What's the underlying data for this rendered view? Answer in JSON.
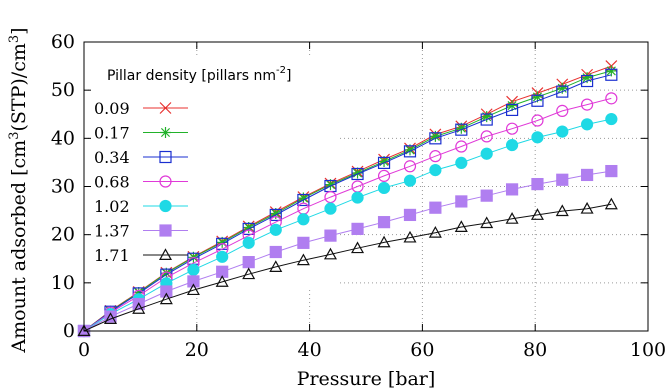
{
  "chart_data": {
    "type": "line",
    "title": "",
    "xlabel": "Pressure [bar]",
    "ylabel_prefix": "Amount adsorbed [cm",
    "ylabel_sup1": "3",
    "ylabel_mid": "(STP)/cm",
    "ylabel_sup2": "3",
    "ylabel_suffix": "]",
    "xlim": [
      0,
      100
    ],
    "ylim": [
      0,
      60
    ],
    "xticks": [
      0,
      20,
      40,
      60,
      80,
      100
    ],
    "yticks": [
      0,
      10,
      20,
      30,
      40,
      50,
      60
    ],
    "grid": true,
    "legend_position": "top-left",
    "legend_title_main": "Pillar density [pillars nm",
    "legend_title_sup": "-2",
    "legend_title_end": "]",
    "x": [
      0,
      4.7,
      9.7,
      14.6,
      19.4,
      24.5,
      29.2,
      34.0,
      38.9,
      43.7,
      48.5,
      53.2,
      57.8,
      62.3,
      66.9,
      71.4,
      75.9,
      80.4,
      84.8,
      89.2,
      93.5
    ],
    "series": [
      {
        "name": "0.09",
        "marker": "x",
        "color": "#e8312f",
        "values": [
          0,
          4.2,
          8.1,
          12.1,
          15.4,
          18.6,
          21.7,
          24.7,
          27.8,
          30.6,
          33.1,
          35.6,
          37.9,
          40.8,
          42.5,
          45.0,
          47.6,
          49.4,
          51.2,
          53.2,
          55.0
        ]
      },
      {
        "name": "0.17",
        "marker": "star",
        "color": "#22b22a",
        "values": [
          0,
          4.1,
          8.0,
          12.0,
          15.3,
          18.4,
          21.5,
          24.4,
          27.6,
          30.4,
          32.8,
          35.2,
          37.6,
          40.4,
          42.1,
          44.5,
          46.8,
          48.6,
          50.4,
          52.6,
          54.0
        ]
      },
      {
        "name": "0.34",
        "marker": "square",
        "color": "#1a2fd0",
        "values": [
          0,
          4.0,
          7.8,
          11.7,
          15.0,
          18.1,
          21.2,
          24.1,
          27.2,
          30.1,
          32.6,
          34.9,
          37.3,
          40.0,
          41.8,
          43.9,
          45.9,
          47.8,
          49.7,
          51.9,
          53.2
        ]
      },
      {
        "name": "0.68",
        "marker": "circle",
        "color": "#e03ad8",
        "values": [
          0,
          3.8,
          7.3,
          11.1,
          14.1,
          17.0,
          19.8,
          22.6,
          25.4,
          27.8,
          30.0,
          32.2,
          34.2,
          36.3,
          38.3,
          40.4,
          42.0,
          43.7,
          45.7,
          47.0,
          48.3
        ]
      },
      {
        "name": "1.02",
        "marker": "circle-filled",
        "color": "#1fd9e5",
        "values": [
          0,
          3.5,
          6.6,
          9.9,
          12.7,
          15.4,
          18.3,
          21.0,
          23.2,
          25.4,
          27.7,
          29.7,
          31.2,
          33.4,
          34.9,
          36.8,
          38.6,
          40.2,
          41.4,
          42.9,
          44.0
        ]
      },
      {
        "name": "1.37",
        "marker": "square-filled",
        "color": "#b07ef0",
        "values": [
          0,
          3.0,
          5.6,
          8.2,
          10.3,
          12.3,
          14.3,
          16.4,
          18.3,
          19.8,
          21.2,
          22.6,
          24.1,
          25.6,
          26.9,
          28.1,
          29.4,
          30.5,
          31.4,
          32.4,
          33.2
        ]
      },
      {
        "name": "1.71",
        "marker": "triangle",
        "color": "#111111",
        "values": [
          0,
          2.5,
          4.6,
          6.6,
          8.5,
          10.2,
          11.8,
          13.3,
          14.7,
          15.9,
          17.2,
          18.4,
          19.4,
          20.4,
          21.6,
          22.4,
          23.3,
          24.1,
          24.9,
          25.4,
          26.3
        ]
      }
    ]
  }
}
